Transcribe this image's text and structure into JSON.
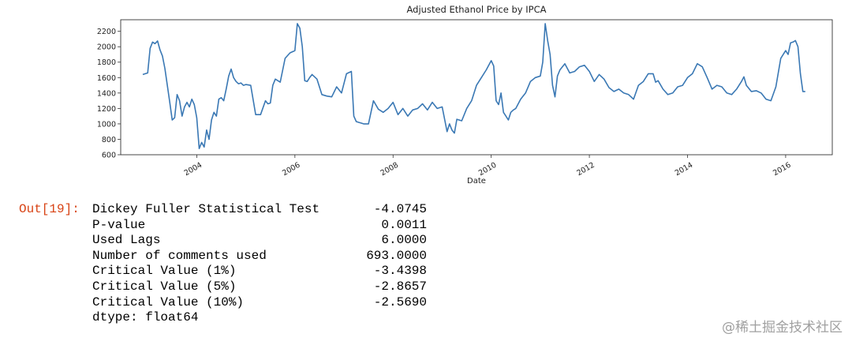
{
  "chart_data": {
    "type": "line",
    "title": "Adjusted Ethanol Price by IPCA",
    "xlabel": "Date",
    "ylabel": "",
    "x_ticks": [
      "2004",
      "2006",
      "2008",
      "2010",
      "2012",
      "2014",
      "2016"
    ],
    "y_ticks": [
      600,
      800,
      1000,
      1200,
      1400,
      1600,
      1800,
      2000,
      2200
    ],
    "ylim": [
      600,
      2350
    ],
    "xlim": [
      2002.45,
      2016.95
    ],
    "grid": false,
    "legend": "none",
    "line_color": "#3a78b4",
    "series": [
      {
        "x": [
          2002.9,
          2003.0,
          2003.05,
          2003.1,
          2003.15,
          2003.2,
          2003.25,
          2003.3,
          2003.35,
          2003.45,
          2003.5,
          2003.55,
          2003.6,
          2003.65,
          2003.7,
          2003.75,
          2003.8,
          2003.85,
          2003.9,
          2003.95,
          2004.0,
          2004.05,
          2004.1,
          2004.15,
          2004.2,
          2004.25,
          2004.3,
          2004.35,
          2004.4,
          2004.45,
          2004.5,
          2004.55,
          2004.6,
          2004.65,
          2004.7,
          2004.75,
          2004.8,
          2004.85,
          2004.9,
          2004.95,
          2005.0,
          2005.1,
          2005.2,
          2005.3,
          2005.4,
          2005.45,
          2005.5,
          2005.55,
          2005.6,
          2005.7,
          2005.8,
          2005.9,
          2006.0,
          2006.05,
          2006.1,
          2006.15,
          2006.2,
          2006.25,
          2006.3,
          2006.35,
          2006.45,
          2006.55,
          2006.65,
          2006.75,
          2006.85,
          2006.95,
          2007.05,
          2007.15,
          2007.2,
          2007.25,
          2007.3,
          2007.35,
          2007.4,
          2007.45,
          2007.5,
          2007.6,
          2007.7,
          2007.8,
          2007.9,
          2008.0,
          2008.1,
          2008.2,
          2008.3,
          2008.4,
          2008.5,
          2008.6,
          2008.7,
          2008.8,
          2008.9,
          2009.0,
          2009.1,
          2009.15,
          2009.2,
          2009.25,
          2009.3,
          2009.4,
          2009.5,
          2009.6,
          2009.7,
          2009.8,
          2009.9,
          2010.0,
          2010.05,
          2010.1,
          2010.15,
          2010.2,
          2010.25,
          2010.3,
          2010.35,
          2010.4,
          2010.45,
          2010.5,
          2010.6,
          2010.7,
          2010.8,
          2010.9,
          2011.0,
          2011.05,
          2011.1,
          2011.15,
          2011.2,
          2011.25,
          2011.3,
          2011.35,
          2011.4,
          2011.5,
          2011.6,
          2011.7,
          2011.8,
          2011.9,
          2012.0,
          2012.1,
          2012.2,
          2012.3,
          2012.4,
          2012.5,
          2012.6,
          2012.7,
          2012.8,
          2012.9,
          2013.0,
          2013.1,
          2013.2,
          2013.3,
          2013.35,
          2013.4,
          2013.5,
          2013.6,
          2013.7,
          2013.8,
          2013.9,
          2014.0,
          2014.1,
          2014.2,
          2014.3,
          2014.4,
          2014.5,
          2014.6,
          2014.7,
          2014.8,
          2014.9,
          2015.0,
          2015.1,
          2015.15,
          2015.2,
          2015.3,
          2015.4,
          2015.5,
          2015.6,
          2015.7,
          2015.8,
          2015.9,
          2016.0,
          2016.05,
          2016.1,
          2016.15,
          2016.2,
          2016.25,
          2016.3,
          2016.35,
          2016.4
        ],
        "y": [
          1640,
          1660,
          1980,
          2060,
          2040,
          2075,
          1960,
          1880,
          1720,
          1280,
          1050,
          1080,
          1380,
          1300,
          1100,
          1220,
          1280,
          1220,
          1320,
          1250,
          1080,
          680,
          760,
          700,
          920,
          800,
          1050,
          1150,
          1100,
          1320,
          1340,
          1300,
          1450,
          1620,
          1710,
          1600,
          1550,
          1520,
          1530,
          1500,
          1510,
          1500,
          1120,
          1120,
          1300,
          1260,
          1270,
          1500,
          1580,
          1540,
          1850,
          1920,
          1950,
          2300,
          2240,
          2000,
          1560,
          1550,
          1600,
          1640,
          1580,
          1380,
          1360,
          1350,
          1480,
          1400,
          1650,
          1680,
          1100,
          1030,
          1020,
          1010,
          1000,
          1000,
          1000,
          1300,
          1190,
          1150,
          1200,
          1280,
          1120,
          1200,
          1100,
          1180,
          1200,
          1260,
          1180,
          1280,
          1200,
          1220,
          900,
          1000,
          920,
          880,
          1060,
          1040,
          1200,
          1300,
          1500,
          1600,
          1700,
          1820,
          1750,
          1300,
          1250,
          1400,
          1150,
          1100,
          1050,
          1150,
          1180,
          1200,
          1320,
          1400,
          1550,
          1600,
          1620,
          1800,
          2300,
          2080,
          1900,
          1500,
          1350,
          1620,
          1700,
          1780,
          1660,
          1680,
          1740,
          1760,
          1680,
          1550,
          1640,
          1580,
          1470,
          1420,
          1450,
          1400,
          1380,
          1320,
          1500,
          1550,
          1650,
          1650,
          1540,
          1560,
          1450,
          1380,
          1400,
          1480,
          1500,
          1600,
          1650,
          1780,
          1740,
          1600,
          1450,
          1500,
          1480,
          1400,
          1380,
          1450,
          1550,
          1610,
          1500,
          1420,
          1430,
          1400,
          1320,
          1300,
          1480,
          1850,
          1950,
          1900,
          2050,
          2060,
          2080,
          2000,
          1650,
          1420,
          1420
        ]
      }
    ]
  },
  "output": {
    "prompt": "Out[19]:",
    "rows": [
      {
        "label": "Dickey Fuller Statistical Test",
        "value": "-4.0745"
      },
      {
        "label": "P-value",
        "value": "0.0011"
      },
      {
        "label": "Used Lags",
        "value": "6.0000"
      },
      {
        "label": "Number of comments used",
        "value": "693.0000"
      },
      {
        "label": "Critical Value (1%)",
        "value": "-3.4398"
      },
      {
        "label": "Critical Value (5%)",
        "value": "-2.8657"
      },
      {
        "label": "Critical Value (10%)",
        "value": "-2.5690"
      }
    ],
    "dtype": "dtype: float64"
  },
  "watermark": "@稀土掘金技术社区"
}
